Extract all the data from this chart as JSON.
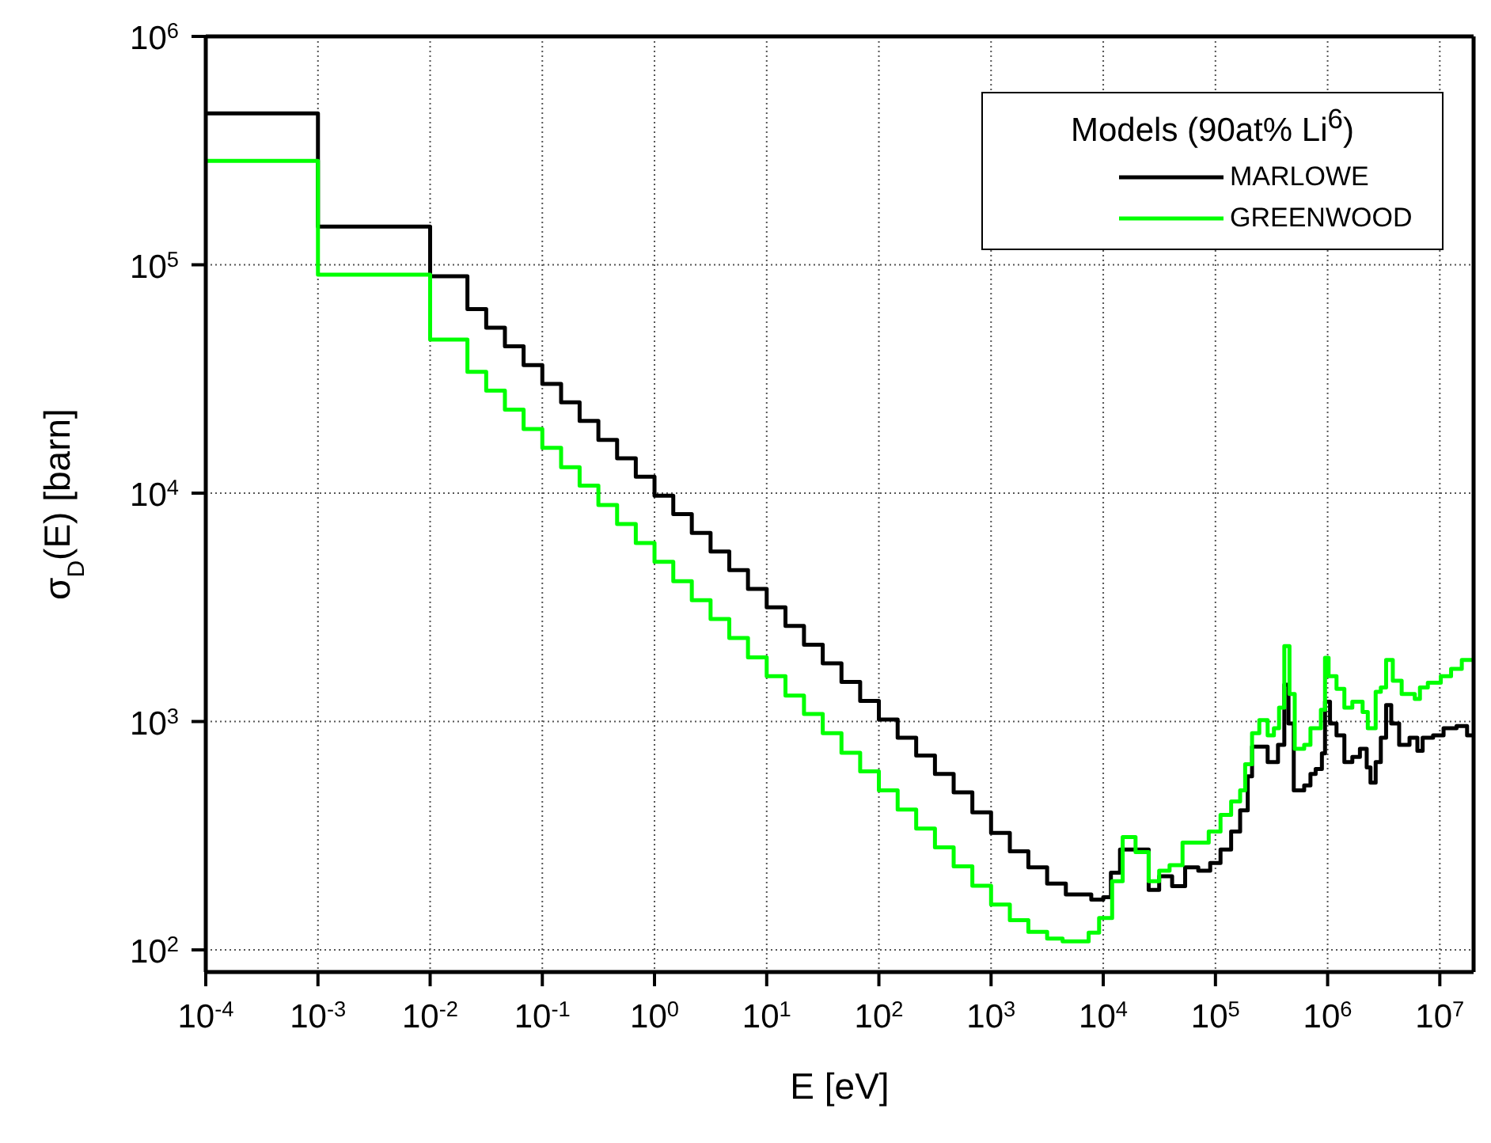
{
  "chart_data": {
    "type": "step",
    "xlabel": "E [eV]",
    "ylabel": "σ$_{D}$(E) [barn]",
    "legend_title": "Models (90at% Li$^{6}$)",
    "log": "xy",
    "grid": true,
    "legend": "top right",
    "xlim": [
      0.0001,
      20000000
    ],
    "ylim": [
      80,
      1000000
    ],
    "xticks": [
      {
        "value": 0.0001,
        "label": "10$^{-4}$"
      },
      {
        "value": 0.001,
        "label": "10$^{-3}$"
      },
      {
        "value": 0.01,
        "label": "10$^{-2}$"
      },
      {
        "value": 0.1,
        "label": "10$^{-1}$"
      },
      {
        "value": 1,
        "label": "10$^{0}$"
      },
      {
        "value": 10,
        "label": "10$^{1}$"
      },
      {
        "value": 100,
        "label": "10$^{2}$"
      },
      {
        "value": 1000,
        "label": "10$^{3}$"
      },
      {
        "value": 10000,
        "label": "10$^{4}$"
      },
      {
        "value": 100000,
        "label": "10$^{5}$"
      },
      {
        "value": 1000000,
        "label": "10$^{6}$"
      },
      {
        "value": 10000000,
        "label": "10$^{7}$"
      }
    ],
    "yticks": [
      {
        "value": 100,
        "label": "10$^{2}$"
      },
      {
        "value": 1000,
        "label": "10$^{3}$"
      },
      {
        "value": 10000,
        "label": "10$^{4}$"
      },
      {
        "value": 100000,
        "label": "10$^{5}$"
      },
      {
        "value": 1000000,
        "label": "10$^{6}$"
      }
    ],
    "series": [
      {
        "name": "MARLOWE",
        "color": "#000000",
        "x": [
          0.0001,
          0.001,
          0.01,
          0.0215,
          0.0316,
          0.0464,
          0.0681,
          0.1,
          0.147,
          0.215,
          0.316,
          0.464,
          0.681,
          1,
          1.47,
          2.15,
          3.16,
          4.64,
          6.81,
          10,
          14.7,
          21.5,
          31.6,
          46.4,
          68.1,
          100,
          147,
          215,
          316,
          464,
          681,
          1000,
          1470,
          2150,
          3160,
          4640,
          7820,
          10000,
          11700,
          14100,
          25400,
          31500,
          41100,
          53700,
          70300,
          89800,
          111000,
          138000,
          166000,
          194000,
          212000,
          292000,
          361000,
          411000,
          448000,
          499000,
          618000,
          703000,
          782000,
          889000,
          948000,
          1050000,
          1200000,
          1410000,
          1660000,
          1940000,
          2230000,
          2410000,
          2680000,
          2980000,
          3320000,
          3690000,
          4340000,
          5370000,
          6310000,
          7030000,
          8710000,
          10800000,
          14100000,
          17500000,
          20000000
        ],
        "values": [
          460000,
          147000,
          89000,
          64000,
          53000,
          44000,
          36400,
          30100,
          25000,
          20700,
          17100,
          14200,
          11800,
          9750,
          8090,
          6700,
          5550,
          4600,
          3810,
          3160,
          2620,
          2170,
          1800,
          1490,
          1230,
          1020,
          850,
          710,
          590,
          490,
          400,
          325,
          270,
          230,
          195,
          175,
          166,
          170,
          218,
          275,
          183,
          210,
          190,
          230,
          222,
          240,
          275,
          330,
          408,
          575,
          777,
          665,
          790,
          1450,
          980,
          500,
          525,
          590,
          620,
          725,
          1220,
          980,
          870,
          665,
          700,
          760,
          630,
          540,
          665,
          850,
          1180,
          980,
          790,
          850,
          745,
          850,
          870,
          935,
          955,
          870,
          870
        ]
      },
      {
        "name": "GREENWOOD",
        "color": "#00ff00",
        "x": [
          0.0001,
          0.001,
          0.01,
          0.0215,
          0.0316,
          0.0464,
          0.0681,
          0.1,
          0.147,
          0.215,
          0.316,
          0.464,
          0.681,
          1,
          1.47,
          2.15,
          3.16,
          4.64,
          6.81,
          10,
          14.7,
          21.5,
          31.6,
          46.4,
          68.1,
          100,
          147,
          215,
          316,
          464,
          681,
          1000,
          1470,
          2150,
          3160,
          4340,
          7410,
          9180,
          12000,
          14900,
          19400,
          25400,
          31500,
          39000,
          50900,
          87100,
          111000,
          138000,
          166000,
          184000,
          212000,
          246000,
          292000,
          332000,
          369000,
          411000,
          457000,
          509000,
          618000,
          703000,
          871000,
          948000,
          1020000,
          1200000,
          1410000,
          1660000,
          2050000,
          2280000,
          2680000,
          2980000,
          3320000,
          3810000,
          4570000,
          5980000,
          6650000,
          7820000,
          10200000,
          12600000,
          15700000,
          20000000
        ],
        "values": [
          285000,
          90600,
          47000,
          34000,
          28100,
          23200,
          19100,
          15800,
          13000,
          10800,
          8880,
          7330,
          6050,
          5000,
          4120,
          3400,
          2810,
          2320,
          1910,
          1580,
          1300,
          1080,
          890,
          730,
          605,
          500,
          412,
          340,
          281,
          232,
          191,
          158,
          135,
          120,
          112,
          109,
          119,
          138,
          200,
          312,
          268,
          200,
          222,
          235,
          295,
          330,
          390,
          447,
          500,
          650,
          890,
          1015,
          870,
          935,
          1150,
          2140,
          1320,
          760,
          790,
          935,
          1125,
          1900,
          1580,
          1390,
          1150,
          1220,
          1100,
          935,
          1350,
          1410,
          1860,
          1510,
          1320,
          1255,
          1410,
          1480,
          1580,
          1700,
          1860,
          1860
        ]
      }
    ]
  }
}
